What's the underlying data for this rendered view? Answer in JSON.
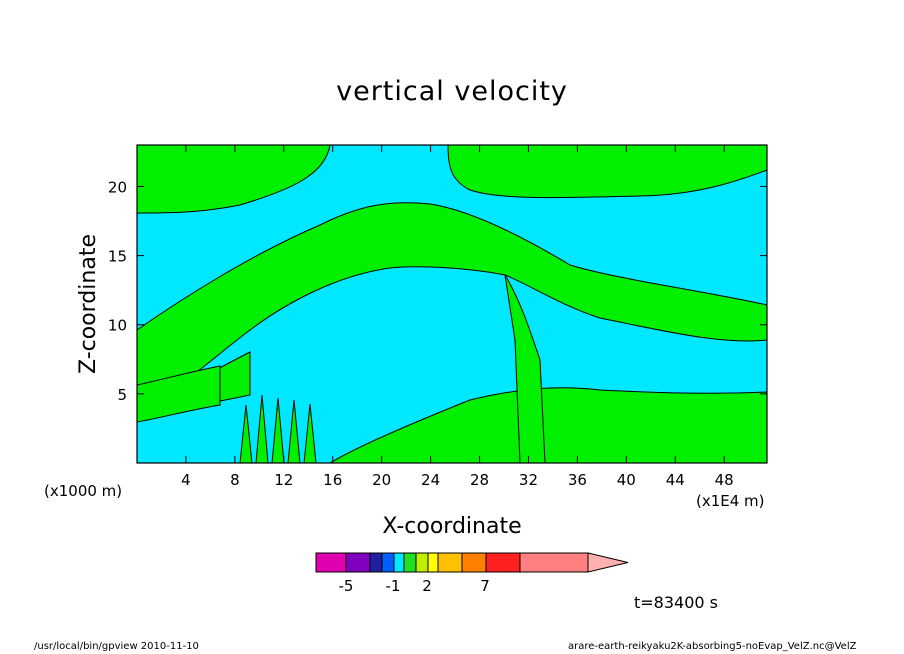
{
  "chart_data": {
    "type": "heatmap",
    "title": "vertical velocity",
    "xlabel": "X-coordinate",
    "ylabel": "Z-coordinate",
    "x_unit": "(x1000 m)",
    "x_scale_note": "(x1E4 m)",
    "xlim": [
      0,
      51.5
    ],
    "ylim": [
      0,
      23
    ],
    "x_ticks": [
      4,
      8,
      12,
      16,
      20,
      24,
      28,
      32,
      36,
      40,
      44,
      48
    ],
    "y_ticks": [
      5,
      10,
      15,
      20
    ],
    "colorbar": {
      "colors": [
        "#e000b0",
        "#8000c0",
        "#2020a0",
        "#0060ff",
        "#00e8ff",
        "#20e020",
        "#c0f000",
        "#ffff00",
        "#ffc000",
        "#ff8000",
        "#ff2020",
        "#ff8080",
        "#ffb0b0"
      ],
      "tick_labels": [
        "-5",
        "-1",
        "2",
        "7"
      ]
    },
    "annotation": "t=83400 s",
    "footer_left": "/usr/local/bin/gpview   2010-11-10",
    "footer_right": "arare-earth-reikyaku2K-absorbing5-noEvap_VelZ.nc@VelZ"
  },
  "colors": {
    "positive": "#00f000",
    "negative": "#00e8ff",
    "line": "#000000"
  }
}
